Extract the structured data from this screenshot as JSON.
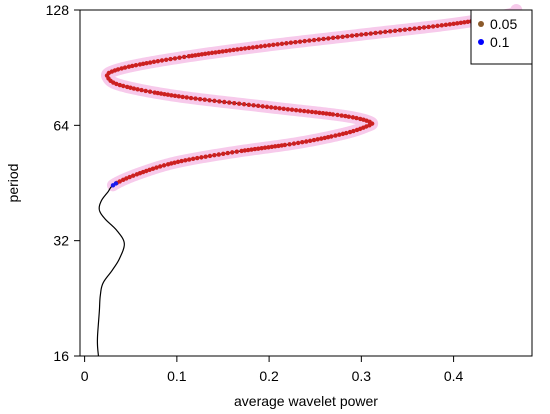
{
  "chart_data": {
    "type": "line",
    "title": "",
    "xlabel": "average wavelet power",
    "ylabel": "period",
    "xlim": [
      -0.005,
      0.485
    ],
    "ylim": [
      16,
      128
    ],
    "y_scale": "log2",
    "grid": false,
    "legend_position": "top-right",
    "x_ticks": [
      0,
      0.1,
      0.2,
      0.3,
      0.4
    ],
    "x_tick_labels": [
      "0",
      "0.1",
      "0.2",
      "0.3",
      "0.4"
    ],
    "y_ticks": [
      16,
      32,
      64,
      128
    ],
    "y_tick_labels": [
      "16",
      "32",
      "64",
      "128"
    ],
    "series": [
      {
        "name": "average wavelet power curve",
        "style": "line",
        "color": "#000000",
        "points": [
          [
            0.015,
            16.0
          ],
          [
            0.014,
            17.0
          ],
          [
            0.014,
            18.0
          ],
          [
            0.015,
            19.5
          ],
          [
            0.016,
            21.0
          ],
          [
            0.017,
            23.0
          ],
          [
            0.02,
            24.8
          ],
          [
            0.03,
            26.8
          ],
          [
            0.038,
            28.8
          ],
          [
            0.043,
            31.5
          ],
          [
            0.035,
            34.0
          ],
          [
            0.022,
            36.5
          ],
          [
            0.016,
            38.5
          ],
          [
            0.018,
            40.6
          ],
          [
            0.025,
            42.8
          ],
          [
            0.033,
            45.0
          ],
          [
            0.06,
            48.0
          ],
          [
            0.1,
            51.3
          ],
          [
            0.16,
            54.4
          ],
          [
            0.23,
            57.5
          ],
          [
            0.28,
            60.8
          ],
          [
            0.305,
            63.5
          ],
          [
            0.31,
            65.2
          ],
          [
            0.28,
            67.8
          ],
          [
            0.2,
            71.4
          ],
          [
            0.1,
            76.3
          ],
          [
            0.04,
            81.3
          ],
          [
            0.025,
            85.5
          ],
          [
            0.03,
            88.5
          ],
          [
            0.06,
            92.3
          ],
          [
            0.12,
            97.5
          ],
          [
            0.2,
            103.5
          ],
          [
            0.3,
            110.4
          ],
          [
            0.4,
            117.8
          ],
          [
            0.46,
            124.6
          ],
          [
            0.468,
            128.0
          ]
        ]
      },
      {
        "name": "0.05",
        "style": "points",
        "color": "#cc2020",
        "from_y": 45.2,
        "to_y": 128
      },
      {
        "name": "0.1",
        "style": "points",
        "color": "#1a1aee",
        "from_y": 44.6,
        "to_y": 45.2
      }
    ],
    "legend": [
      {
        "label": "0.05",
        "color": "#8b5a2b"
      },
      {
        "label": "0.1",
        "color": "#0000ff"
      }
    ]
  }
}
